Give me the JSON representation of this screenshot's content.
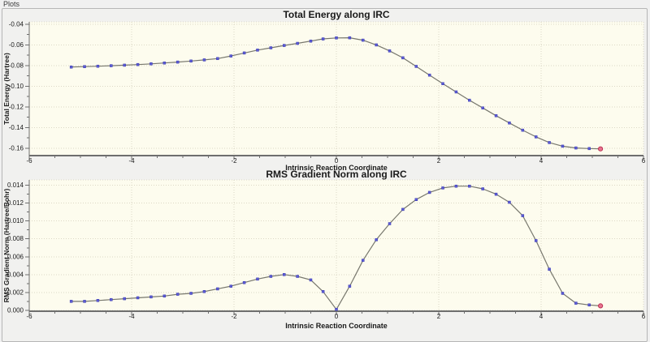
{
  "window": {
    "panel_label": "Plots"
  },
  "colors": {
    "window_bg": "#f0f0f0",
    "chart_bg": "#f1f1ef",
    "plot_bg": "#fdfcee",
    "grid": "#dcd8c6",
    "curve": "#77776d",
    "marker": "#5b5bd6",
    "marker_edge": "#3c3cb0",
    "final_marker_fill": "#e8738f",
    "final_marker_stroke": "#bb3355",
    "axis": "#6e6e6e",
    "text": "#1a1a1a",
    "groupbox_border": "#b6b6b6"
  },
  "chart_data": [
    {
      "type": "line",
      "title": "Total Energy along IRC",
      "xlabel": "Intrinsic Reaction Coordinate",
      "ylabel": "Total Energy (Hartree)",
      "xlim": [
        -6,
        6
      ],
      "ylim": [
        -0.1671,
        -0.0377
      ],
      "grid": true,
      "x_major_ticks": [
        -6,
        -4,
        -2,
        0,
        2,
        4,
        6
      ],
      "x_tick_labels": [
        "-6",
        "-4",
        "-2",
        "0",
        "2",
        "4",
        "6"
      ],
      "x_minor_step": 0.5,
      "y_major_ticks": [
        -0.16,
        -0.14,
        -0.12,
        -0.1,
        -0.08,
        -0.06,
        -0.04
      ],
      "y_tick_labels": [
        "-0.16",
        "-0.14",
        "-0.12",
        "-0.10",
        "-0.08",
        "-0.06",
        "-0.04"
      ],
      "y_minor_step": 0.01,
      "series": [
        {
          "name": "total-energy",
          "marker": "square",
          "points": [
            [
              -5.18,
              -0.0814
            ],
            [
              -4.92,
              -0.081
            ],
            [
              -4.66,
              -0.0806
            ],
            [
              -4.4,
              -0.0801
            ],
            [
              -4.14,
              -0.0796
            ],
            [
              -3.88,
              -0.079
            ],
            [
              -3.62,
              -0.0783
            ],
            [
              -3.36,
              -0.0775
            ],
            [
              -3.1,
              -0.0766
            ],
            [
              -2.84,
              -0.0756
            ],
            [
              -2.58,
              -0.0745
            ],
            [
              -2.32,
              -0.0732
            ],
            [
              -2.06,
              -0.0707
            ],
            [
              -1.8,
              -0.0678
            ],
            [
              -1.54,
              -0.065
            ],
            [
              -1.28,
              -0.0628
            ],
            [
              -1.02,
              -0.0605
            ],
            [
              -0.76,
              -0.0585
            ],
            [
              -0.5,
              -0.0563
            ],
            [
              -0.26,
              -0.0542
            ],
            [
              0.0,
              -0.0532
            ],
            [
              0.26,
              -0.0531
            ],
            [
              0.52,
              -0.0554
            ],
            [
              0.78,
              -0.06
            ],
            [
              1.04,
              -0.0658
            ],
            [
              1.3,
              -0.0725
            ],
            [
              1.56,
              -0.0808
            ],
            [
              1.82,
              -0.0892
            ],
            [
              2.08,
              -0.0975
            ],
            [
              2.34,
              -0.1055
            ],
            [
              2.6,
              -0.1135
            ],
            [
              2.86,
              -0.121
            ],
            [
              3.12,
              -0.1285
            ],
            [
              3.38,
              -0.1355
            ],
            [
              3.64,
              -0.1425
            ],
            [
              3.9,
              -0.149
            ],
            [
              4.16,
              -0.1545
            ],
            [
              4.42,
              -0.158
            ],
            [
              4.68,
              -0.1597
            ],
            [
              4.94,
              -0.1603
            ]
          ]
        }
      ],
      "final_point": [
        5.16,
        -0.1606
      ]
    },
    {
      "type": "line",
      "title": "RMS Gradient Norm along IRC",
      "xlabel": "Intrinsic Reaction Coordinate",
      "ylabel": "RMS Gradient Norm (Hartree/Bohr)",
      "xlim": [
        -6,
        6
      ],
      "ylim": [
        -0.0001,
        0.0146
      ],
      "grid": true,
      "x_major_ticks": [
        -6,
        -4,
        -2,
        0,
        2,
        4,
        6
      ],
      "x_tick_labels": [
        "-6",
        "-4",
        "-2",
        "0",
        "2",
        "4",
        "6"
      ],
      "x_minor_step": 0.5,
      "y_major_ticks": [
        0.0,
        0.002,
        0.004,
        0.006,
        0.008,
        0.01,
        0.012,
        0.014
      ],
      "y_tick_labels": [
        "0.000",
        "0.002",
        "0.004",
        "0.006",
        "0.008",
        "0.010",
        "0.012",
        "0.014"
      ],
      "y_minor_step": 0.001,
      "series": [
        {
          "name": "rms-gradient-norm",
          "marker": "square",
          "points": [
            [
              -5.18,
              0.001
            ],
            [
              -4.92,
              0.001
            ],
            [
              -4.66,
              0.0011
            ],
            [
              -4.4,
              0.0012
            ],
            [
              -4.14,
              0.0013
            ],
            [
              -3.88,
              0.0014
            ],
            [
              -3.62,
              0.0015
            ],
            [
              -3.36,
              0.0016
            ],
            [
              -3.1,
              0.0018
            ],
            [
              -2.84,
              0.0019
            ],
            [
              -2.58,
              0.0021
            ],
            [
              -2.32,
              0.0024
            ],
            [
              -2.06,
              0.0027
            ],
            [
              -1.8,
              0.0031
            ],
            [
              -1.54,
              0.0035
            ],
            [
              -1.28,
              0.0038
            ],
            [
              -1.02,
              0.004
            ],
            [
              -0.76,
              0.0038
            ],
            [
              -0.5,
              0.0034
            ],
            [
              -0.26,
              0.0021
            ],
            [
              0.0,
              0.0001
            ],
            [
              0.26,
              0.0027
            ],
            [
              0.52,
              0.0056
            ],
            [
              0.78,
              0.0079
            ],
            [
              1.04,
              0.0097
            ],
            [
              1.3,
              0.0113
            ],
            [
              1.56,
              0.0124
            ],
            [
              1.82,
              0.0132
            ],
            [
              2.08,
              0.0137
            ],
            [
              2.34,
              0.0139
            ],
            [
              2.6,
              0.0139
            ],
            [
              2.86,
              0.0136
            ],
            [
              3.12,
              0.013
            ],
            [
              3.38,
              0.0121
            ],
            [
              3.64,
              0.0106
            ],
            [
              3.9,
              0.0078
            ],
            [
              4.16,
              0.0046
            ],
            [
              4.42,
              0.0019
            ],
            [
              4.68,
              0.0008
            ],
            [
              4.94,
              0.0006
            ]
          ]
        }
      ],
      "final_point": [
        5.16,
        0.0005
      ]
    }
  ]
}
